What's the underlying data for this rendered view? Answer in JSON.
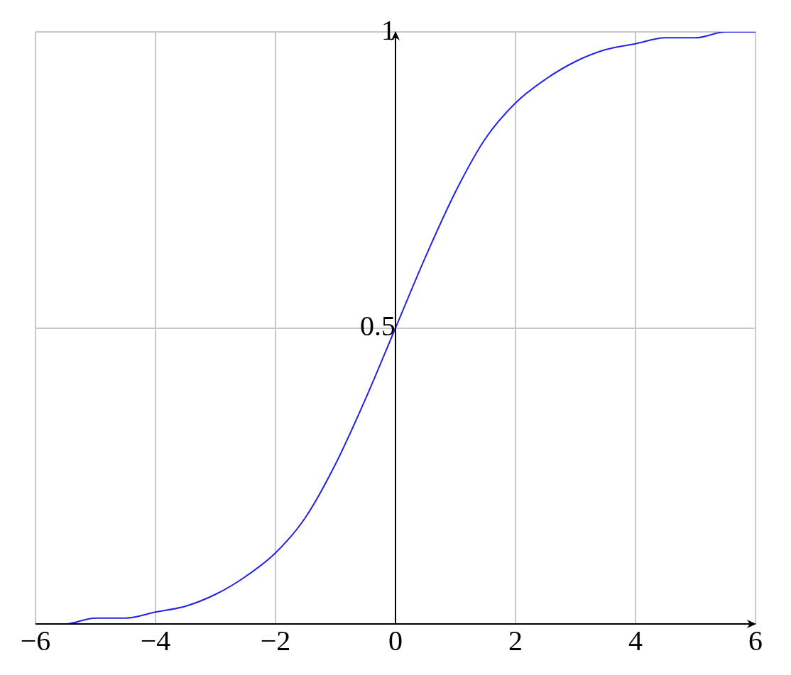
{
  "chart_data": {
    "type": "line",
    "x": [
      -6,
      -5.5,
      -5,
      -4.5,
      -4,
      -3.5,
      -3,
      -2.5,
      -2,
      -1.5,
      -1,
      -0.5,
      0,
      0.5,
      1,
      1.5,
      2,
      2.5,
      3,
      3.5,
      4,
      4.5,
      5,
      5.5,
      6
    ],
    "series": [
      {
        "color": "#2323e6",
        "values": [
          0.0,
          0.0,
          0.01,
          0.01,
          0.02,
          0.03,
          0.05,
          0.08,
          0.12,
          0.18,
          0.27,
          0.38,
          0.5,
          0.62,
          0.73,
          0.82,
          0.88,
          0.92,
          0.95,
          0.97,
          0.98,
          0.99,
          0.99,
          1.0,
          1.0
        ]
      }
    ],
    "xlim": [
      -6,
      6
    ],
    "xticks": [
      {
        "value": -6,
        "label": "−6"
      },
      {
        "value": -4,
        "label": "−4"
      },
      {
        "value": -2,
        "label": "−2"
      },
      0,
      2,
      4,
      6
    ],
    "ylim": [
      0,
      1
    ],
    "yticks": [
      {
        "value": 0,
        "label": null
      },
      0.5,
      1
    ],
    "grid": true,
    "legend": false,
    "marker": "none",
    "line_style": "solid"
  }
}
